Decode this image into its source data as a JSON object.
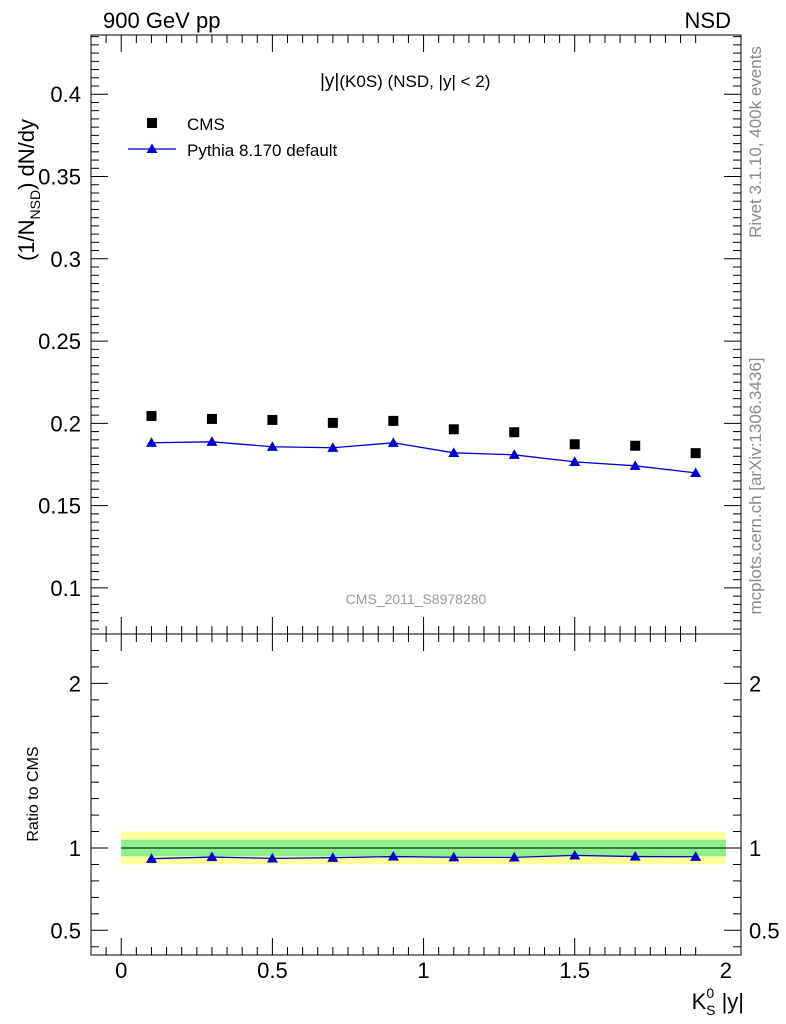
{
  "header": {
    "left": "900 GeV pp",
    "right": "NSD"
  },
  "plot_title": {
    "bar_y": "|y|",
    "rest": "(K0S) (NSD, |y| < 2)"
  },
  "side_labels": {
    "rivet": "Rivet 3.1.10,  400k events",
    "mcplots": "mcplots.cern.ch [arXiv:1306.3436]"
  },
  "watermark": "CMS_2011_S8978280",
  "axes": {
    "ylabel_main": {
      "pre": "(1/N",
      "sub": "NSD",
      "post": ") dN/dy"
    },
    "ylabel_ratio": "Ratio to CMS",
    "xlabel": {
      "base": "K",
      "sup": "0",
      "sub": "S",
      "post": " |y|"
    }
  },
  "colors": {
    "data": "#000000",
    "mc": "#0000cc",
    "band_inner": "#8cf08c",
    "band_outer": "#ffff9a"
  },
  "chart_data": [
    {
      "type": "scatter",
      "panel": "main",
      "xlim": [
        -0.1,
        2.05
      ],
      "ylim": [
        0.072,
        0.436
      ],
      "yticks": [
        0.1,
        0.15,
        0.2,
        0.25,
        0.3,
        0.35,
        0.4
      ],
      "ytick_labels": [
        "0.1",
        "0.15",
        "0.2",
        "0.25",
        "0.3",
        "0.35",
        "0.4"
      ],
      "legend_position": "top-left",
      "series": [
        {
          "name": "CMS",
          "marker": "square",
          "x": [
            0.1,
            0.3,
            0.5,
            0.7,
            0.9,
            1.1,
            1.3,
            1.5,
            1.7,
            1.9
          ],
          "y": [
            0.2045,
            0.2027,
            0.2021,
            0.2003,
            0.2015,
            0.1964,
            0.1946,
            0.1873,
            0.1864,
            0.1819
          ]
        },
        {
          "name": "Pythia 8.170 default",
          "marker": "triangle",
          "line": true,
          "x": [
            0.1,
            0.3,
            0.5,
            0.7,
            0.9,
            1.1,
            1.3,
            1.5,
            1.7,
            1.9
          ],
          "y": [
            0.1882,
            0.1888,
            0.1858,
            0.1852,
            0.1882,
            0.1821,
            0.1809,
            0.1766,
            0.1742,
            0.1699
          ]
        }
      ]
    },
    {
      "type": "line",
      "panel": "ratio",
      "xlim": [
        -0.1,
        2.05
      ],
      "ylim": [
        0.35,
        2.3
      ],
      "xticks": [
        0,
        0.5,
        1,
        1.5,
        2
      ],
      "xtick_labels": [
        "0",
        "0.5",
        "1",
        "1.5",
        "2"
      ],
      "yticks": [
        0.5,
        1,
        2
      ],
      "ytick_labels": [
        "0.5",
        "1",
        "2"
      ],
      "reference": 1,
      "band_inner": [
        0.95,
        1.05
      ],
      "band_outer": [
        0.9,
        1.1
      ],
      "series": [
        {
          "name": "Pythia 8.170 default",
          "marker": "triangle",
          "x": [
            0.1,
            0.3,
            0.5,
            0.7,
            0.9,
            1.1,
            1.3,
            1.5,
            1.7,
            1.9
          ],
          "y": [
            0.935,
            0.945,
            0.937,
            0.941,
            0.948,
            0.944,
            0.943,
            0.955,
            0.948,
            0.947
          ]
        }
      ]
    }
  ]
}
